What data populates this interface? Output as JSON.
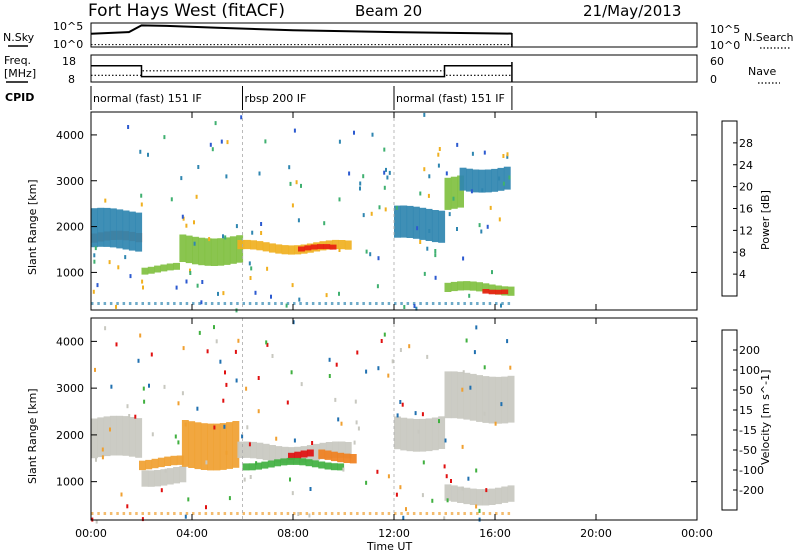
{
  "header": {
    "station": "Fort Hays West (fitACF)",
    "beam": "Beam 20",
    "date": "21/May/2013"
  },
  "side_labels": {
    "nsky": "N.Sky",
    "nsearch": "N.Search",
    "freq_line1": "Freq.",
    "freq_line2": "[MHz]",
    "nave": "Nave",
    "cpid": "CPID"
  },
  "colors": {
    "power": [
      "#2020d0",
      "#2c5ad0",
      "#2f86b0",
      "#3f9a70",
      "#3fb070",
      "#80c040",
      "#f0b020",
      "#f08020",
      "#f05010",
      "#e82010"
    ],
    "velocity": [
      "#e01010",
      "#f05010",
      "#f08020",
      "#f0a030",
      "#c8c8c0",
      "#c8c8c0",
      "#80d040",
      "#40b040",
      "#2070b0",
      "#2030c0"
    ]
  },
  "chart_data": [
    {
      "type": "line",
      "panel": "noise",
      "series": [
        {
          "name": "N.Sky",
          "x": [
            "00:00",
            "01:30",
            "02:00",
            "03:00",
            "05:00",
            "08:00",
            "12:00",
            "15:00",
            "16:40"
          ],
          "y": [
            0.55,
            0.62,
            0.9,
            0.88,
            0.8,
            0.7,
            0.62,
            0.58,
            0.56
          ]
        },
        {
          "name": "N.Search",
          "x": [
            "00:00",
            "16:40"
          ],
          "y": [
            0.1,
            0.1
          ]
        }
      ],
      "left_ticks": [
        "10^5",
        "10^0"
      ],
      "right_ticks": [
        "10^5",
        "10^0"
      ]
    },
    {
      "type": "line",
      "panel": "frequency",
      "series": [
        {
          "name": "Freq.",
          "x": [
            "00:00",
            "02:00",
            "02:00",
            "14:00",
            "14:00",
            "16:40"
          ],
          "y": [
            14,
            14,
            10,
            10,
            14,
            14
          ]
        },
        {
          "name": "Nave",
          "x": [
            "00:00",
            "02:00",
            "02:00",
            "14:00",
            "14:00",
            "16:40"
          ],
          "y": [
            15,
            15,
            25,
            25,
            15,
            15
          ]
        }
      ],
      "left_ticks": [
        "18",
        "8"
      ],
      "right_ticks": [
        "60",
        "0"
      ]
    },
    {
      "type": "table",
      "panel": "cpid",
      "segments": [
        {
          "start": "00:00",
          "end": "06:00",
          "label": "normal (fast) 151 IF"
        },
        {
          "start": "06:00",
          "end": "12:00",
          "label": "rbsp 200 IF"
        },
        {
          "start": "12:00",
          "end": "16:40",
          "label": "normal (fast) 151 IF"
        }
      ]
    },
    {
      "type": "heatmap",
      "panel": "power",
      "title": "Power [dB]",
      "xlabel": "Time UT",
      "ylabel": "Slant Range [km]",
      "xlim": [
        "00:00",
        "24:00"
      ],
      "ylim": [
        180,
        4500
      ],
      "x_ticks": [
        "00:00",
        "04:00",
        "08:00",
        "12:00",
        "16:00",
        "20:00",
        "00:00"
      ],
      "y_ticks": [
        1000,
        2000,
        3000,
        4000
      ],
      "colorbar_ticks": [
        4,
        8,
        12,
        16,
        20,
        24,
        28
      ],
      "bands": [
        {
          "t": [
            0.0,
            1.9
          ],
          "r": [
            1650,
            1850
          ],
          "value": 24
        },
        {
          "t": [
            0.0,
            1.9
          ],
          "r": [
            1500,
            2350
          ],
          "value": 8
        },
        {
          "t": [
            2.0,
            3.5
          ],
          "r": [
            1000,
            1150
          ],
          "value": 16
        },
        {
          "t": [
            3.5,
            5.8
          ],
          "r": [
            1200,
            1800
          ],
          "value": 16
        },
        {
          "t": [
            5.8,
            10.3
          ],
          "r": [
            1450,
            1650
          ],
          "value": 20
        },
        {
          "t": [
            8.2,
            9.5
          ],
          "r": [
            1450,
            1560
          ],
          "value": 28
        },
        {
          "t": [
            12.0,
            13.8
          ],
          "r": [
            1700,
            2400
          ],
          "value": 8
        },
        {
          "t": [
            14.0,
            14.7
          ],
          "r": [
            2400,
            3100
          ],
          "value": 16
        },
        {
          "t": [
            14.0,
            16.6
          ],
          "r": [
            550,
            750
          ],
          "value": 16
        },
        {
          "t": [
            15.5,
            16.4
          ],
          "r": [
            580,
            680
          ],
          "value": 28
        },
        {
          "t": [
            14.6,
            16.6
          ],
          "r": [
            2800,
            3300
          ],
          "value": 8
        }
      ]
    },
    {
      "type": "heatmap",
      "panel": "velocity",
      "title": "Velocity [m s^-1]",
      "xlabel": "Time UT",
      "ylabel": "Slant Range [km]",
      "xlim": [
        "00:00",
        "24:00"
      ],
      "ylim": [
        180,
        4500
      ],
      "x_ticks": [
        "00:00",
        "04:00",
        "08:00",
        "12:00",
        "16:00",
        "20:00",
        "00:00"
      ],
      "y_ticks": [
        1000,
        2000,
        3000,
        4000
      ],
      "colorbar_ticks": [
        -200,
        -100,
        -50,
        -15,
        15,
        50,
        100,
        200
      ],
      "bands": [
        {
          "t": [
            0.0,
            1.9
          ],
          "r": [
            1500,
            2350
          ],
          "value": 0
        },
        {
          "t": [
            2.0,
            3.6
          ],
          "r": [
            950,
            1300
          ],
          "value": 0
        },
        {
          "t": [
            1.9,
            3.6
          ],
          "r": [
            1300,
            1500
          ],
          "value": -40
        },
        {
          "t": [
            3.6,
            5.8
          ],
          "r": [
            1300,
            2300
          ],
          "value": -40
        },
        {
          "t": [
            5.8,
            10.3
          ],
          "r": [
            1450,
            1800
          ],
          "value": 0
        },
        {
          "t": [
            7.8,
            8.6
          ],
          "r": [
            1500,
            1650
          ],
          "value": -200
        },
        {
          "t": [
            9.0,
            10.3
          ],
          "r": [
            1450,
            1650
          ],
          "value": -80
        },
        {
          "t": [
            6.0,
            10.0
          ],
          "r": [
            1300,
            1450
          ],
          "value": 60
        },
        {
          "t": [
            12.0,
            13.8
          ],
          "r": [
            1700,
            2400
          ],
          "value": 0
        },
        {
          "t": [
            14.0,
            16.6
          ],
          "r": [
            2300,
            3300
          ],
          "value": 0
        },
        {
          "t": [
            14.0,
            16.6
          ],
          "r": [
            550,
            900
          ],
          "value": 0
        }
      ]
    }
  ]
}
